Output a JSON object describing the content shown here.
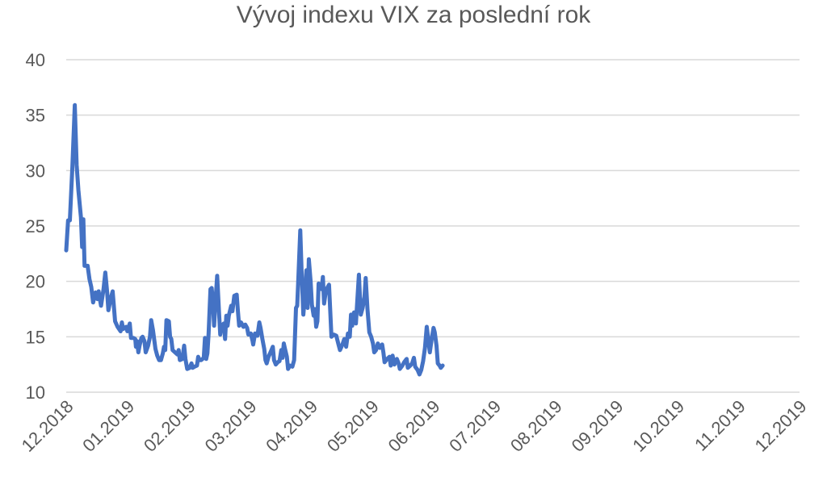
{
  "chart_data": {
    "type": "line",
    "title": "Vývoj indexu VIX za poslední rok",
    "xlabel": "",
    "ylabel": "",
    "ylim": [
      10,
      40
    ],
    "yticks": [
      10,
      15,
      20,
      25,
      30,
      35,
      40
    ],
    "grid": true,
    "legend": "none",
    "x_tick_labels": [
      "12.2018",
      "01.2019",
      "02.2019",
      "03.2019",
      "04.2019",
      "05.2019",
      "06.2019",
      "07.2019",
      "08.2019",
      "09.2019",
      "10.2019",
      "11.2019",
      "12.2019"
    ],
    "series": [
      {
        "color": "#4472c4",
        "points": [
          [
            0,
            22.8
          ],
          [
            0.03,
            25.5
          ],
          [
            0.06,
            25.5
          ],
          [
            0.1,
            30.3
          ],
          [
            0.14,
            35.9
          ],
          [
            0.17,
            30.5
          ],
          [
            0.2,
            28.2
          ],
          [
            0.24,
            25.8
          ],
          [
            0.26,
            23.1
          ],
          [
            0.28,
            25.6
          ],
          [
            0.3,
            21.4
          ],
          [
            0.35,
            21.4
          ],
          [
            0.38,
            20.2
          ],
          [
            0.41,
            19.5
          ],
          [
            0.44,
            18.1
          ],
          [
            0.48,
            19.0
          ],
          [
            0.51,
            18.4
          ],
          [
            0.53,
            19.1
          ],
          [
            0.57,
            17.8
          ],
          [
            0.61,
            19.3
          ],
          [
            0.64,
            20.8
          ],
          [
            0.67,
            19.0
          ],
          [
            0.69,
            17.4
          ],
          [
            0.73,
            18.5
          ],
          [
            0.76,
            19.1
          ],
          [
            0.8,
            16.4
          ],
          [
            0.84,
            15.9
          ],
          [
            0.89,
            15.5
          ],
          [
            0.91,
            16.3
          ],
          [
            0.93,
            15.7
          ],
          [
            0.98,
            15.9
          ],
          [
            1.0,
            15.5
          ],
          [
            1.04,
            16.2
          ],
          [
            1.06,
            14.9
          ],
          [
            1.1,
            14.9
          ],
          [
            1.13,
            14.8
          ],
          [
            1.14,
            14.1
          ],
          [
            1.16,
            14.6
          ],
          [
            1.18,
            13.6
          ],
          [
            1.2,
            14.2
          ],
          [
            1.23,
            14.9
          ],
          [
            1.25,
            15.0
          ],
          [
            1.28,
            14.6
          ],
          [
            1.3,
            13.6
          ],
          [
            1.34,
            14.2
          ],
          [
            1.37,
            15.0
          ],
          [
            1.39,
            16.5
          ],
          [
            1.42,
            15.6
          ],
          [
            1.46,
            13.9
          ],
          [
            1.49,
            13.3
          ],
          [
            1.52,
            12.9
          ],
          [
            1.55,
            12.9
          ],
          [
            1.58,
            13.5
          ],
          [
            1.6,
            14.1
          ],
          [
            1.62,
            13.8
          ],
          [
            1.64,
            16.5
          ],
          [
            1.68,
            16.4
          ],
          [
            1.7,
            15.0
          ],
          [
            1.72,
            14.8
          ],
          [
            1.74,
            13.8
          ],
          [
            1.78,
            13.6
          ],
          [
            1.82,
            13.4
          ],
          [
            1.84,
            13.8
          ],
          [
            1.86,
            12.9
          ],
          [
            1.9,
            13.0
          ],
          [
            1.93,
            14.2
          ],
          [
            1.95,
            13.0
          ],
          [
            1.98,
            12.1
          ],
          [
            2.02,
            12.2
          ],
          [
            2.05,
            12.6
          ],
          [
            2.07,
            12.2
          ],
          [
            2.1,
            12.3
          ],
          [
            2.14,
            12.4
          ],
          [
            2.16,
            13.2
          ],
          [
            2.18,
            12.9
          ],
          [
            2.21,
            12.9
          ],
          [
            2.25,
            13.1
          ],
          [
            2.27,
            14.9
          ],
          [
            2.29,
            13.0
          ],
          [
            2.31,
            13.5
          ],
          [
            2.33,
            15.3
          ],
          [
            2.36,
            19.3
          ],
          [
            2.38,
            19.4
          ],
          [
            2.4,
            18.2
          ],
          [
            2.42,
            16.0
          ],
          [
            2.44,
            17.9
          ],
          [
            2.47,
            20.5
          ],
          [
            2.5,
            17.2
          ],
          [
            2.52,
            15.2
          ],
          [
            2.54,
            16.0
          ],
          [
            2.58,
            16.2
          ],
          [
            2.6,
            14.8
          ],
          [
            2.62,
            16.9
          ],
          [
            2.64,
            16.0
          ],
          [
            2.66,
            16.9
          ],
          [
            2.7,
            17.8
          ],
          [
            2.72,
            17.3
          ],
          [
            2.75,
            18.7
          ],
          [
            2.79,
            18.8
          ],
          [
            2.81,
            17.3
          ],
          [
            2.83,
            16.0
          ],
          [
            2.86,
            16.3
          ],
          [
            2.9,
            15.9
          ],
          [
            2.93,
            16.1
          ],
          [
            2.96,
            15.8
          ],
          [
            2.98,
            15.2
          ],
          [
            3.02,
            15.3
          ],
          [
            3.05,
            14.6
          ],
          [
            3.06,
            14.3
          ],
          [
            3.09,
            15.3
          ],
          [
            3.13,
            15.1
          ],
          [
            3.16,
            16.3
          ],
          [
            3.18,
            15.8
          ],
          [
            3.21,
            14.8
          ],
          [
            3.24,
            13.9
          ],
          [
            3.26,
            12.9
          ],
          [
            3.28,
            12.6
          ],
          [
            3.31,
            13.2
          ],
          [
            3.35,
            13.7
          ],
          [
            3.38,
            14.1
          ],
          [
            3.4,
            12.9
          ],
          [
            3.43,
            12.5
          ],
          [
            3.46,
            12.7
          ],
          [
            3.49,
            12.8
          ],
          [
            3.52,
            13.8
          ],
          [
            3.54,
            13.1
          ],
          [
            3.56,
            14.4
          ],
          [
            3.58,
            13.9
          ],
          [
            3.61,
            13.2
          ],
          [
            3.63,
            12.1
          ],
          [
            3.66,
            12.4
          ],
          [
            3.7,
            12.3
          ],
          [
            3.73,
            12.9
          ],
          [
            3.76,
            17.6
          ],
          [
            3.78,
            17.8
          ],
          [
            3.8,
            20.4
          ],
          [
            3.83,
            24.6
          ],
          [
            3.85,
            21.2
          ],
          [
            3.88,
            17.0
          ],
          [
            3.9,
            18.3
          ],
          [
            3.93,
            21.0
          ],
          [
            3.95,
            17.6
          ],
          [
            3.97,
            22.0
          ],
          [
            4.0,
            19.9
          ],
          [
            4.02,
            17.9
          ],
          [
            4.05,
            16.9
          ],
          [
            4.07,
            17.5
          ],
          [
            4.09,
            15.9
          ],
          [
            4.11,
            16.4
          ],
          [
            4.13,
            19.8
          ],
          [
            4.16,
            19.7
          ],
          [
            4.18,
            19.3
          ],
          [
            4.2,
            20.4
          ],
          [
            4.22,
            18.0
          ],
          [
            4.25,
            19.2
          ],
          [
            4.3,
            19.7
          ],
          [
            4.34,
            15.0
          ],
          [
            4.38,
            15.2
          ],
          [
            4.42,
            15.1
          ],
          [
            4.46,
            14.2
          ],
          [
            4.48,
            13.8
          ],
          [
            4.52,
            14.3
          ],
          [
            4.55,
            14.8
          ],
          [
            4.58,
            14.1
          ],
          [
            4.61,
            15.3
          ],
          [
            4.64,
            15.0
          ],
          [
            4.66,
            17.0
          ],
          [
            4.68,
            16.0
          ],
          [
            4.71,
            17.2
          ],
          [
            4.74,
            16.2
          ],
          [
            4.76,
            18.0
          ],
          [
            4.79,
            20.6
          ],
          [
            4.82,
            17.0
          ],
          [
            4.85,
            17.6
          ],
          [
            4.88,
            18.6
          ],
          [
            4.9,
            20.3
          ],
          [
            4.93,
            17.5
          ],
          [
            4.96,
            15.4
          ],
          [
            4.99,
            15.0
          ],
          [
            5.02,
            14.4
          ],
          [
            5.04,
            13.6
          ],
          [
            5.07,
            13.8
          ],
          [
            5.1,
            14.4
          ],
          [
            5.13,
            14.0
          ],
          [
            5.17,
            14.3
          ],
          [
            5.19,
            13.6
          ],
          [
            5.21,
            12.7
          ],
          [
            5.25,
            13.0
          ],
          [
            5.29,
            13.2
          ],
          [
            5.31,
            12.4
          ],
          [
            5.34,
            13.3
          ],
          [
            5.37,
            12.5
          ],
          [
            5.41,
            13.0
          ],
          [
            5.44,
            12.6
          ],
          [
            5.46,
            12.1
          ],
          [
            5.5,
            12.4
          ],
          [
            5.53,
            12.7
          ],
          [
            5.57,
            13.0
          ],
          [
            5.59,
            12.2
          ],
          [
            5.63,
            12.4
          ],
          [
            5.66,
            12.6
          ],
          [
            5.69,
            13.1
          ],
          [
            5.71,
            12.3
          ],
          [
            5.75,
            12.0
          ],
          [
            5.78,
            11.6
          ],
          [
            5.81,
            12.0
          ],
          [
            5.84,
            12.8
          ],
          [
            5.87,
            14.0
          ],
          [
            5.9,
            15.9
          ],
          [
            5.92,
            15.0
          ],
          [
            5.95,
            13.6
          ],
          [
            5.98,
            14.8
          ],
          [
            6.01,
            15.8
          ],
          [
            6.03,
            15.4
          ],
          [
            6.06,
            14.2
          ],
          [
            6.08,
            12.6
          ],
          [
            6.11,
            12.4
          ],
          [
            6.13,
            12.2
          ],
          [
            6.16,
            12.4
          ]
        ]
      }
    ]
  }
}
